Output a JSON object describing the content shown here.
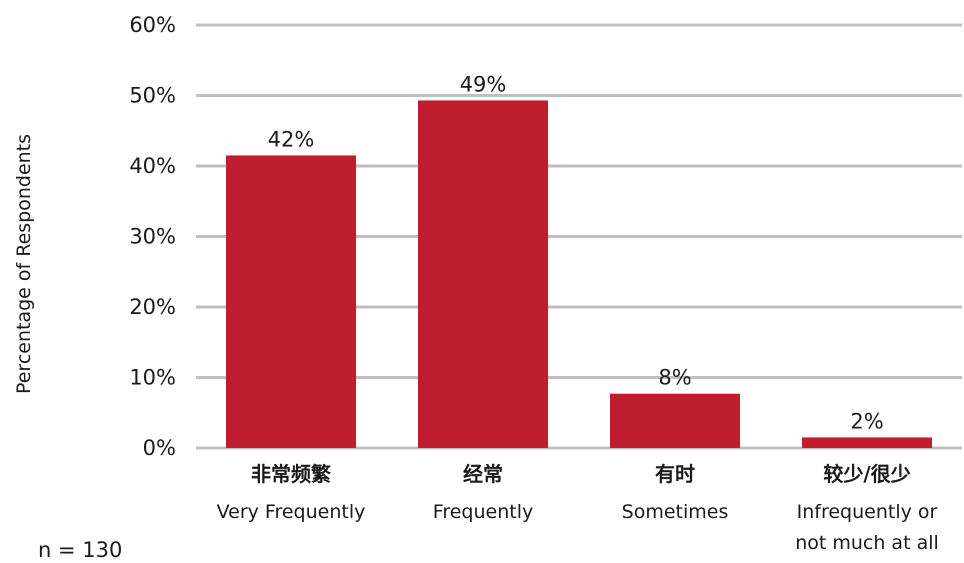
{
  "chart_data": {
    "type": "bar",
    "categories": [
      {
        "cn": "非常频繁",
        "en": [
          "Very Frequently"
        ]
      },
      {
        "cn": "经常",
        "en": [
          "Frequently"
        ]
      },
      {
        "cn": "有时",
        "en": [
          "Sometimes"
        ]
      },
      {
        "cn": "较少/很少",
        "en": [
          "Infrequently or",
          "not much at all"
        ]
      }
    ],
    "values": [
      41.5,
      49.3,
      7.7,
      1.5
    ],
    "data_labels": [
      "42%",
      "49%",
      "8%",
      "2%"
    ],
    "ylabel": "Percentage of Respondents",
    "ylim": [
      0,
      60
    ],
    "yticks": [
      0,
      10,
      20,
      30,
      40,
      50,
      60
    ],
    "ytick_labels": [
      "0%",
      "10%",
      "20%",
      "30%",
      "40%",
      "50%",
      "60%"
    ],
    "grid": true,
    "colors": {
      "bar": "#be1e2d",
      "grid": "#bfbfbf"
    }
  },
  "note": "n = 130"
}
